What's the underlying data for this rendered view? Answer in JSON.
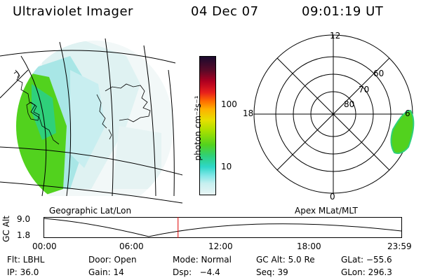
{
  "header": {
    "instrument": "Ultraviolet Imager",
    "date": "04 Dec 07",
    "time": "09:01:19 UT"
  },
  "colorbar": {
    "unit_label": "photon cm⁻²s⁻¹",
    "tick_labels": [
      "100",
      "10"
    ],
    "colors": [
      "#1a0a2e",
      "#5a0a28",
      "#b00020",
      "#e8201c",
      "#ff6a00",
      "#ffb000",
      "#e6e000",
      "#a6e000",
      "#52d21e",
      "#2fd07a",
      "#2fd7c8",
      "#7fe6e6",
      "#c8f0f0",
      "#e8f5f5"
    ]
  },
  "polar_plot": {
    "mlt_labels": [
      "12",
      "18",
      "6",
      "0"
    ],
    "mlat_labels": [
      "60",
      "70",
      "80"
    ]
  },
  "map_labels": {
    "left": "Geographic Lat/Lon",
    "right": "Apex MLat/MLT"
  },
  "altitude_plot": {
    "ylabel": "GC Alt",
    "y_ticks": [
      "9.0",
      "1.8"
    ],
    "x_ticks": [
      "00:00",
      "06:00",
      "12:00",
      "18:00",
      "23:59"
    ],
    "current_time_fraction": 0.376
  },
  "info": {
    "flt": "Flt: LBHL",
    "door": "Door: Open",
    "mode": "Mode: Normal",
    "gc_alt": "GC Alt: 5.0 Re",
    "glat": "GLat: −55.6",
    "ip": "IP: 36.0",
    "gain": "Gain: 14",
    "dsp": "Dsp:   −4.4",
    "seq": "Seq: 39",
    "glon": "GLon: 296.3"
  }
}
